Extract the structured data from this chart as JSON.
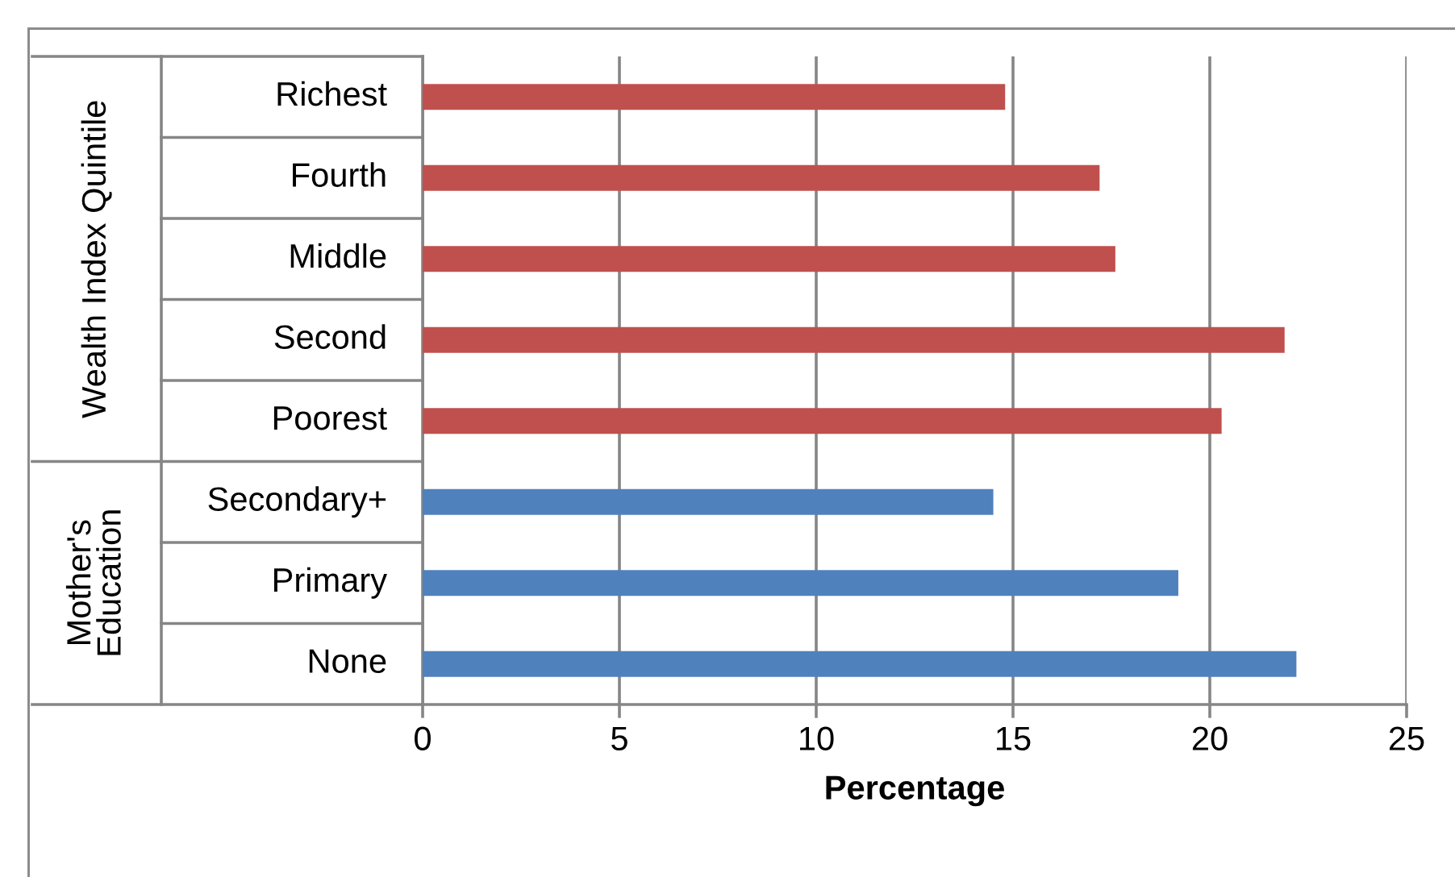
{
  "chart_data": {
    "type": "bar",
    "orientation": "horizontal",
    "categories": [
      "Richest",
      "Fourth",
      "Middle",
      "Second",
      "Poorest",
      "Secondary+",
      "Primary",
      "None"
    ],
    "values": [
      14.8,
      17.2,
      17.6,
      21.9,
      20.3,
      14.5,
      19.2,
      22.2
    ],
    "colors": [
      "#c0504d",
      "#c0504d",
      "#c0504d",
      "#c0504d",
      "#c0504d",
      "#4f81bd",
      "#4f81bd",
      "#4f81bd"
    ],
    "annotations": [
      "Wealth Index Quintile",
      "Mother's\nEducation"
    ],
    "xlabel": "Percentage",
    "xlim": [
      0,
      25
    ],
    "xticks": [
      0,
      5,
      10,
      15,
      20,
      25
    ],
    "grid": "x"
  }
}
